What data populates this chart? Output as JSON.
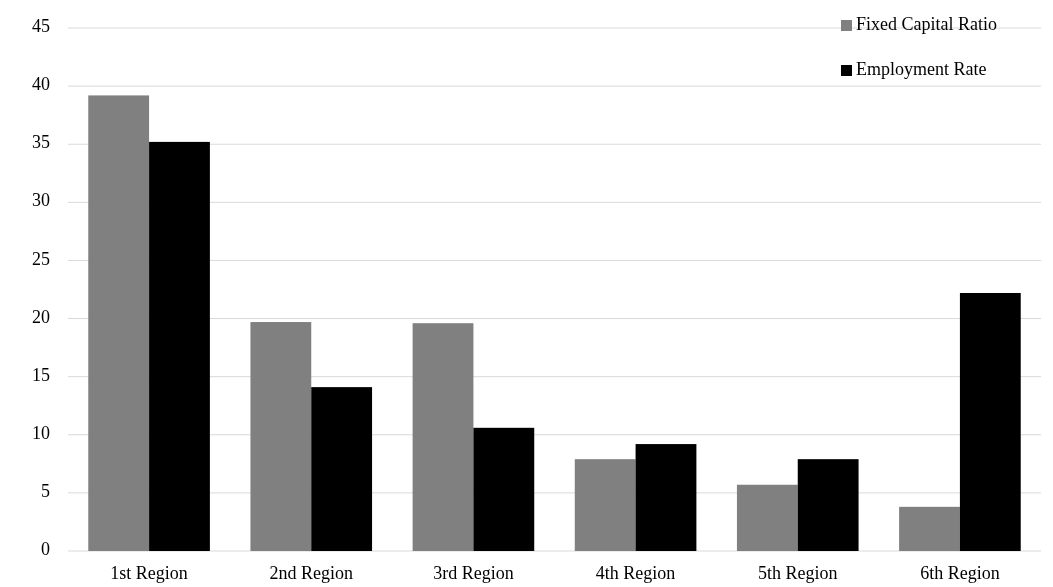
{
  "chart_data": {
    "type": "bar",
    "categories": [
      "1st Region",
      "2nd Region",
      "3rd Region",
      "4th Region",
      "5th Region",
      "6th Region"
    ],
    "series": [
      {
        "name": "Fixed Capital Ratio",
        "color": "#808080",
        "values": [
          39.2,
          19.7,
          19.6,
          7.9,
          5.7,
          3.8
        ]
      },
      {
        "name": "Employment Rate",
        "color": "#000000",
        "values": [
          35.2,
          14.1,
          10.6,
          9.2,
          7.9,
          22.2
        ]
      }
    ],
    "ylim": [
      0,
      45
    ],
    "yticks": [
      0,
      5,
      10,
      15,
      20,
      25,
      30,
      35,
      40,
      45
    ],
    "grid": "y",
    "legend": "top right"
  }
}
